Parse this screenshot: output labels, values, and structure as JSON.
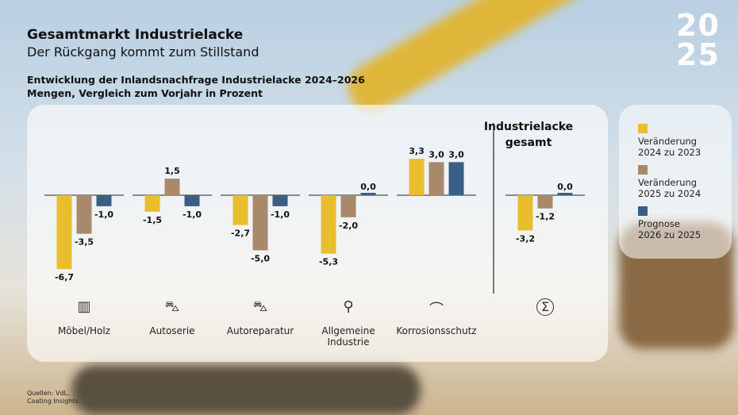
{
  "header": {
    "title": "Gesamtmarkt Industrielacke",
    "subtitle": "Der Rückgang kommt zum Stillstand",
    "year_line1": "20",
    "year_line2": "25"
  },
  "chart_data": {
    "type": "bar",
    "title": "Entwicklung der Inlandsnachfrage Industrielacke 2024–2026",
    "subtitle": "Mengen, Vergleich zum Vorjahr in Prozent",
    "categories": [
      "Möbel/Holz",
      "Autoserie",
      "Autoreparatur",
      "Allgemeine Industrie",
      "Korrosionsschutz",
      "Industrielacke gesamt"
    ],
    "series": [
      {
        "name": "Veränderung 2024 zu 2023",
        "color": "#E8BE2E",
        "values": [
          -6.7,
          -1.5,
          -2.7,
          -5.3,
          3.3,
          -3.2
        ],
        "labels": [
          "-6,7",
          "-1,5",
          "-2,7",
          "-5,3",
          "3,3",
          "-3,2"
        ]
      },
      {
        "name": "Veränderung 2025 zu 2024",
        "color": "#A88A6A",
        "values": [
          -3.5,
          1.5,
          -5.0,
          -2.0,
          3.0,
          -1.2
        ],
        "labels": [
          "-3,5",
          "1,5",
          "-5,0",
          "-2,0",
          "3,0",
          "-1,2"
        ]
      },
      {
        "name": "Prognose 2026 zu 2025",
        "color": "#3A5F85",
        "values": [
          -1.0,
          -1.0,
          -1.0,
          0.0,
          3.0,
          0.0
        ],
        "labels": [
          "-1,0",
          "-1,0",
          "-1,0",
          "0,0",
          "3,0",
          "0,0"
        ]
      }
    ],
    "legend": "right"
  },
  "categories_display": [
    "Möbel/Holz",
    "Autoserie",
    "Autoreparatur",
    "Allgemeine\nIndustrie",
    "Korrosionsschutz"
  ],
  "total_heading": "Industrielacke gesamt",
  "legend": [
    {
      "line1": "Veränderung",
      "line2": "2024 zu 2023"
    },
    {
      "line1": "Veränderung",
      "line2": "2025 zu 2024"
    },
    {
      "line1": "Prognose",
      "line2": "2026 zu 2025"
    }
  ],
  "icons": [
    "cabinet-icon",
    "car-icon",
    "damaged-car-icon",
    "robot-arm-icon",
    "bridge-icon",
    "sigma-icon"
  ],
  "source": {
    "line1": "Quellen: VdL,",
    "line2": "Coating Insights"
  }
}
